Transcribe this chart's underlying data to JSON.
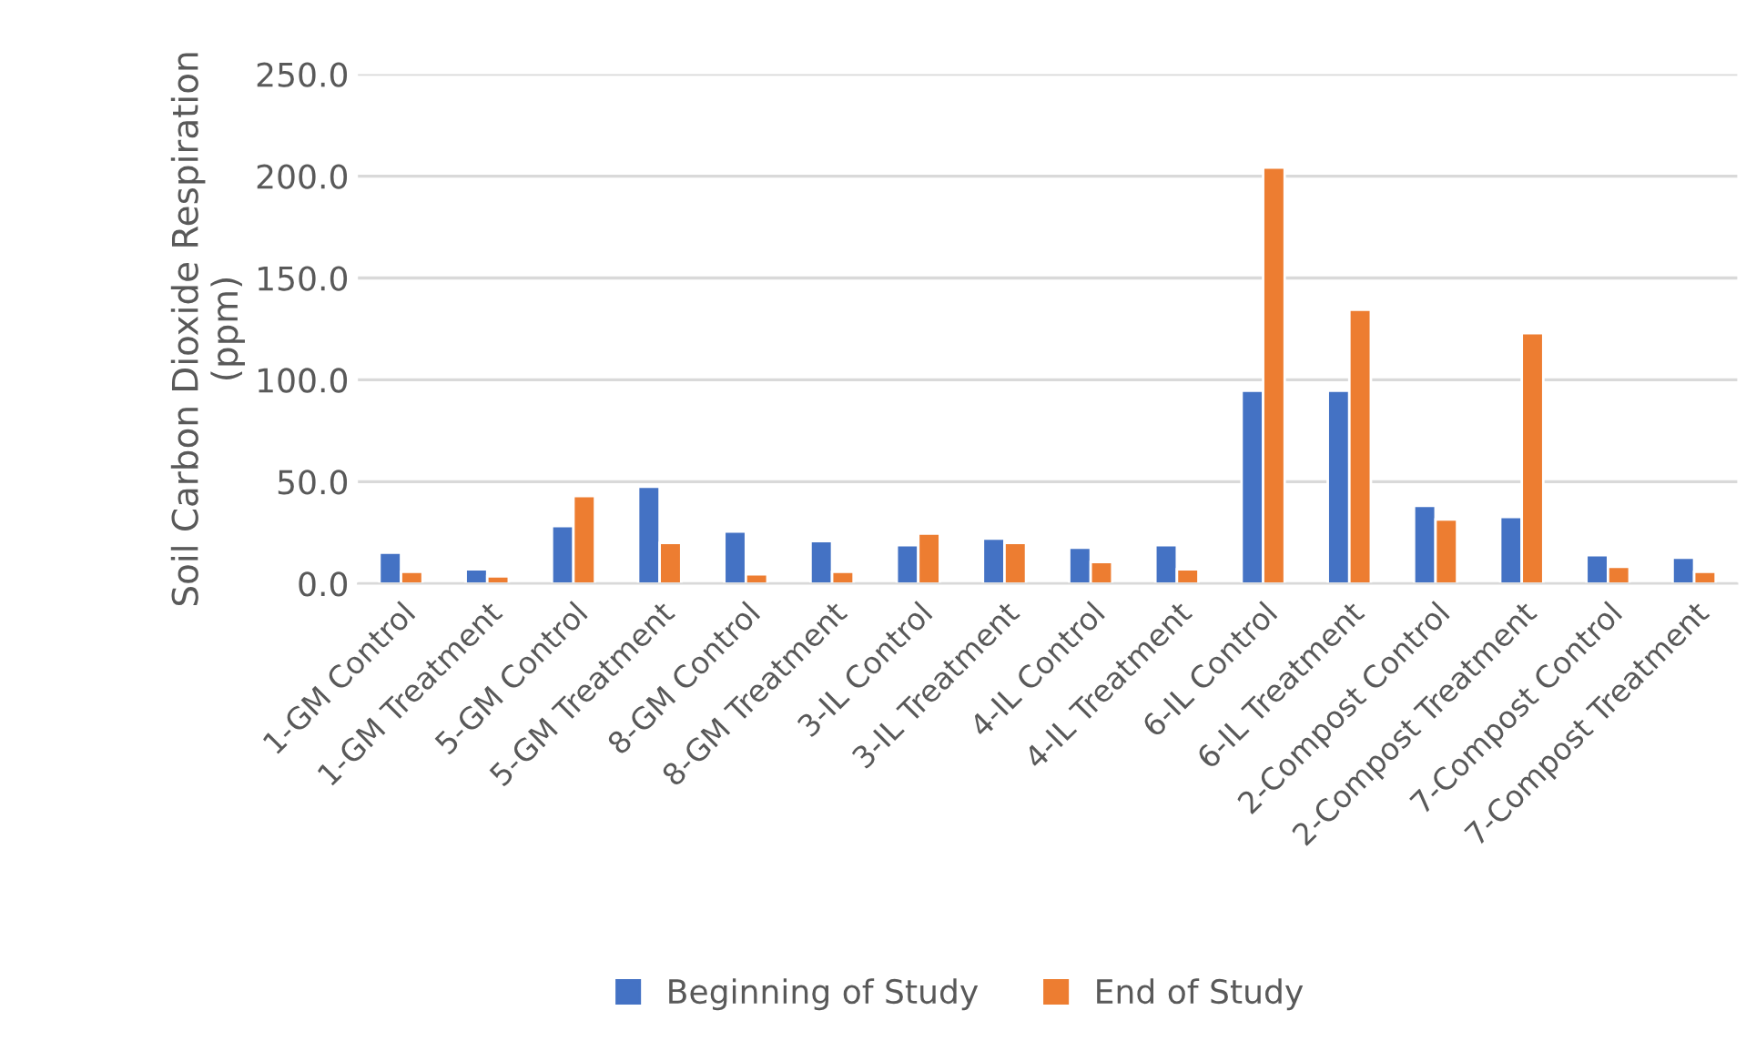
{
  "chart_data": {
    "type": "bar",
    "ylabel": "Soil Carbon Dioxide Respiration (ppm)",
    "categories": [
      "1-GM Control",
      "1-GM Treatment",
      "5-GM Control",
      "5-GM Treatment",
      "8-GM Control",
      "8-GM Treatment",
      "3-IL Control",
      "3-IL Treatment",
      "4-IL Control",
      "4-IL Treatment",
      "6-IL Control",
      "6-IL Treatment",
      "2-Compost Control",
      "2-Compost Treatment",
      "7-Compost Control",
      "7-Compost Treatment"
    ],
    "series": [
      {
        "name": "Beginning of Study",
        "color": "#4472c4",
        "values": [
          15.2,
          7.0,
          28.2,
          47.6,
          25.5,
          20.9,
          18.8,
          22.1,
          17.6,
          18.8,
          94.7,
          94.7,
          38.2,
          32.7,
          13.9,
          12.7
        ]
      },
      {
        "name": "End of Study",
        "color": "#ed7d31",
        "values": [
          5.8,
          3.6,
          43.0,
          20.0,
          4.5,
          5.8,
          24.5,
          20.0,
          10.6,
          7.0,
          204.2,
          134.4,
          31.5,
          122.9,
          8.2,
          5.8
        ]
      }
    ],
    "ylim": [
      0,
      250
    ],
    "yticks": [
      {
        "value": 0,
        "label": "0.0"
      },
      {
        "value": 50,
        "label": "50.0"
      },
      {
        "value": 100,
        "label": "100.0"
      },
      {
        "value": 150,
        "label": "150.0"
      },
      {
        "value": 200,
        "label": "200.0"
      },
      {
        "value": 250,
        "label": "250.0"
      }
    ],
    "grid": "y",
    "legend": "bottom"
  }
}
